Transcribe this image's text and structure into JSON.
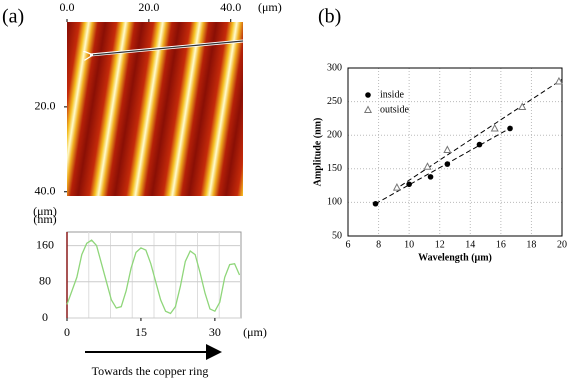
{
  "chart_data": [
    {
      "type": "image",
      "panel_label": "(a)",
      "xlim": [
        0,
        43
      ],
      "ylim": [
        0,
        41
      ],
      "xticks": [
        {
          "value": 0,
          "label": "0.0"
        },
        {
          "value": 20,
          "label": "20.0"
        },
        {
          "value": 40,
          "label": "40.0"
        }
      ],
      "yticks": [
        {
          "value": 20,
          "label": "20.0"
        },
        {
          "value": 40,
          "label": "40.0"
        }
      ],
      "x_unit": "(μm)",
      "y_unit": "(μm)"
    },
    {
      "type": "line",
      "color": "#8fd67a",
      "grid": true,
      "x": [
        0,
        1,
        2,
        3,
        4,
        5,
        6,
        7,
        8,
        9,
        10,
        11,
        12,
        13,
        14,
        15,
        16,
        17,
        18,
        19,
        20,
        21,
        22,
        23,
        24,
        25,
        26,
        27,
        28,
        29,
        30,
        31,
        32,
        33,
        34,
        35
      ],
      "values": [
        30,
        60,
        90,
        140,
        165,
        172,
        160,
        120,
        80,
        40,
        22,
        25,
        60,
        110,
        145,
        155,
        150,
        120,
        80,
        40,
        15,
        10,
        25,
        70,
        125,
        148,
        140,
        100,
        55,
        20,
        15,
        35,
        90,
        118,
        120,
        95
      ],
      "xlim": [
        0,
        35.3
      ],
      "ylim": [
        0,
        190
      ],
      "xticks": [
        0,
        15,
        30
      ],
      "yticks": [
        0,
        80,
        160
      ],
      "x_unit": "(μm)",
      "y_unit": "(nm)",
      "annotation": "Towards the copper ring"
    },
    {
      "type": "scatter",
      "panel_label": "(b)",
      "grid": true,
      "legend": "upper left",
      "xlabel": "Wavelength (μm)",
      "ylabel": "Amplitude (nm)",
      "xlim": [
        6,
        20
      ],
      "ylim": [
        50,
        300
      ],
      "xticks": [
        6,
        8,
        10,
        12,
        14,
        16,
        18,
        20
      ],
      "yticks": [
        50,
        100,
        150,
        200,
        250,
        300
      ],
      "series": [
        {
          "name": "inside",
          "color": "#000000",
          "marker": "circle",
          "x": [
            7.8,
            10.0,
            11.4,
            12.5,
            14.6,
            16.6
          ],
          "values": [
            98,
            127,
            138,
            157,
            186,
            210
          ],
          "fit": {
            "x": [
              7.8,
              16.8
            ],
            "values": [
              98,
              213
            ]
          }
        },
        {
          "name": "outside",
          "color": "#777777",
          "marker": "triangle",
          "x": [
            9.2,
            11.2,
            12.5,
            15.6,
            17.4,
            19.8
          ],
          "values": [
            122,
            153,
            178,
            210,
            242,
            280
          ],
          "fit": {
            "x": [
              9.0,
              20.0
            ],
            "values": [
              118,
              283
            ]
          }
        }
      ]
    }
  ]
}
